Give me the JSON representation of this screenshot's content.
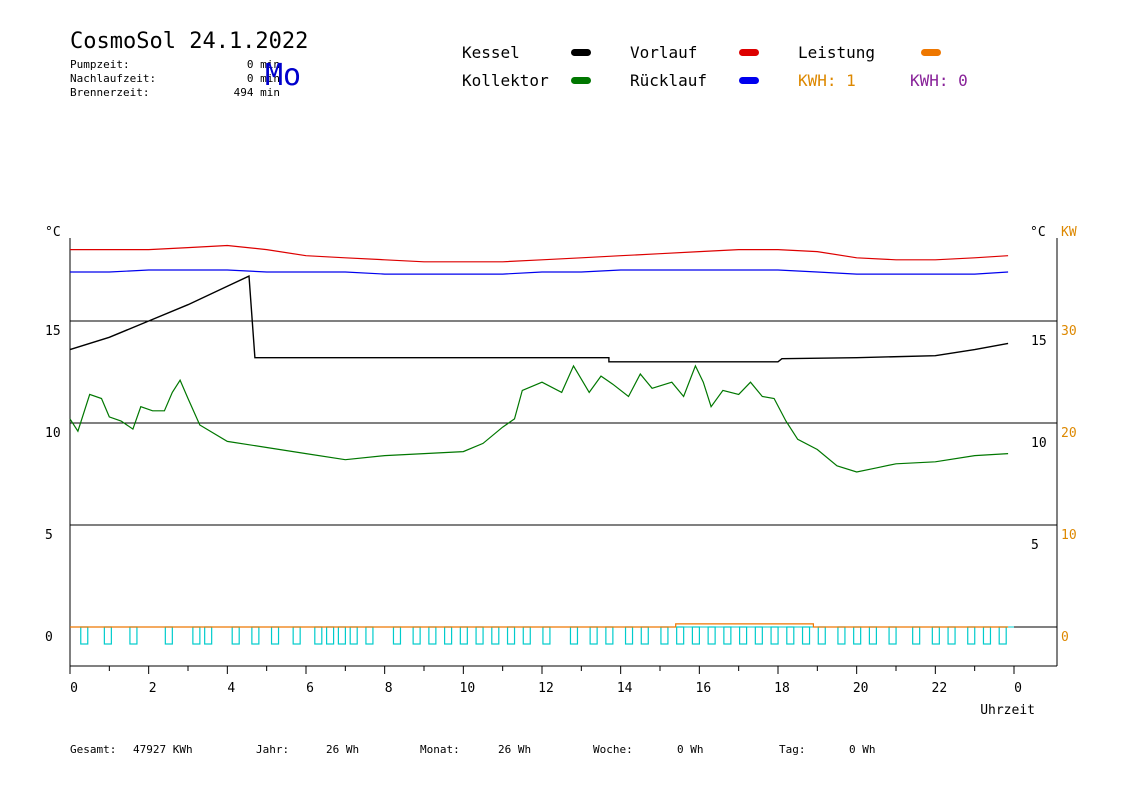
{
  "header": {
    "title": "CosmoSol 24.1.2022",
    "day": "Mo",
    "pump_label": "Pumpzeit:",
    "pump_value": "0 min",
    "nachlauf_label": "Nachlaufzeit:",
    "nachlauf_value": "0 min",
    "brenner_label": "Brennerzeit:",
    "brenner_value": "494 min"
  },
  "legend": {
    "kessel": "Kessel",
    "kollektor": "Kollektor",
    "vorlauf": "Vorlauf",
    "ruecklauf": "Rücklauf",
    "leistung": "Leistung",
    "kwh1": "KWH: 1",
    "kwh2": "KWH: 0"
  },
  "footer": {
    "gesamt_label": "Gesamt:",
    "gesamt_value": "47927 KWh",
    "jahr_label": "Jahr:",
    "jahr_value": "26 Wh",
    "monat_label": "Monat:",
    "monat_value": "26 Wh",
    "woche_label": "Woche:",
    "woche_value": "0 Wh",
    "tag_label": "Tag:",
    "tag_value": "0 Wh"
  },
  "colors": {
    "kessel": "#000000",
    "kollektor": "#007700",
    "vorlauf": "#dd0000",
    "ruecklauf": "#0000ee",
    "leistung": "#ee7700",
    "kwh1": "#dd8800",
    "kwh2": "#882299",
    "pump": "#00cccc"
  },
  "chart_data": {
    "type": "line",
    "xlabel": "Uhrzeit",
    "x_ticks": [
      "0",
      "2",
      "4",
      "6",
      "8",
      "10",
      "12",
      "14",
      "16",
      "18",
      "20",
      "22",
      "0"
    ],
    "left_axis": {
      "unit": "°C",
      "ticks": [
        "15",
        "10",
        "5",
        "0"
      ]
    },
    "right_axis_inner": {
      "unit": "°C",
      "ticks": [
        "15",
        "10",
        "5"
      ]
    },
    "right_axis_outer": {
      "unit": "KW",
      "ticks": [
        "30",
        "20",
        "10",
        "0"
      ]
    },
    "series": [
      {
        "name": "Kessel",
        "points": [
          [
            0,
            13.6
          ],
          [
            1,
            14.2
          ],
          [
            2,
            15
          ],
          [
            3,
            15.8
          ],
          [
            4,
            16.7
          ],
          [
            4.55,
            17.2
          ],
          [
            4.7,
            13.2
          ],
          [
            6,
            13.2
          ],
          [
            8,
            13.2
          ],
          [
            10,
            13.2
          ],
          [
            12,
            13.2
          ],
          [
            13.7,
            13.2
          ],
          [
            13.7,
            13.0
          ],
          [
            16,
            13.0
          ],
          [
            18,
            13.0
          ],
          [
            18.1,
            13.15
          ],
          [
            20,
            13.2
          ],
          [
            22,
            13.3
          ],
          [
            23,
            13.6
          ],
          [
            23.85,
            13.9
          ]
        ]
      },
      {
        "name": "Kollektor",
        "points": [
          [
            0,
            10.2
          ],
          [
            0.2,
            9.6
          ],
          [
            0.5,
            11.4
          ],
          [
            0.8,
            11.2
          ],
          [
            1,
            10.3
          ],
          [
            1.3,
            10.1
          ],
          [
            1.6,
            9.7
          ],
          [
            1.8,
            10.8
          ],
          [
            2.1,
            10.6
          ],
          [
            2.4,
            10.6
          ],
          [
            2.6,
            11.5
          ],
          [
            2.8,
            12.1
          ],
          [
            3,
            11.2
          ],
          [
            3.3,
            9.9
          ],
          [
            4,
            9.1
          ],
          [
            5,
            8.8
          ],
          [
            6,
            8.5
          ],
          [
            7,
            8.2
          ],
          [
            8,
            8.4
          ],
          [
            9,
            8.5
          ],
          [
            10,
            8.6
          ],
          [
            10.5,
            9.0
          ],
          [
            11,
            9.8
          ],
          [
            11.3,
            10.2
          ],
          [
            11.5,
            11.6
          ],
          [
            12,
            12.0
          ],
          [
            12.5,
            11.5
          ],
          [
            12.8,
            12.8
          ],
          [
            13.2,
            11.5
          ],
          [
            13.5,
            12.3
          ],
          [
            13.8,
            11.9
          ],
          [
            14.2,
            11.3
          ],
          [
            14.5,
            12.4
          ],
          [
            14.8,
            11.7
          ],
          [
            15.3,
            12.0
          ],
          [
            15.6,
            11.3
          ],
          [
            15.9,
            12.8
          ],
          [
            16.1,
            12.0
          ],
          [
            16.3,
            10.8
          ],
          [
            16.6,
            11.6
          ],
          [
            17,
            11.4
          ],
          [
            17.3,
            12.0
          ],
          [
            17.6,
            11.3
          ],
          [
            17.9,
            11.2
          ],
          [
            18.2,
            10.1
          ],
          [
            18.5,
            9.2
          ],
          [
            19,
            8.7
          ],
          [
            19.5,
            7.9
          ],
          [
            20,
            7.6
          ],
          [
            20.5,
            7.8
          ],
          [
            21,
            8.0
          ],
          [
            22,
            8.1
          ],
          [
            23,
            8.4
          ],
          [
            23.85,
            8.5
          ]
        ]
      },
      {
        "name": "Vorlauf",
        "points": [
          [
            0,
            18.5
          ],
          [
            1,
            18.5
          ],
          [
            2,
            18.5
          ],
          [
            3,
            18.6
          ],
          [
            4,
            18.7
          ],
          [
            5,
            18.5
          ],
          [
            6,
            18.2
          ],
          [
            7,
            18.1
          ],
          [
            8,
            18.0
          ],
          [
            9,
            17.9
          ],
          [
            10,
            17.9
          ],
          [
            11,
            17.9
          ],
          [
            12,
            18.0
          ],
          [
            13,
            18.1
          ],
          [
            14,
            18.2
          ],
          [
            15,
            18.3
          ],
          [
            16,
            18.4
          ],
          [
            17,
            18.5
          ],
          [
            18,
            18.5
          ],
          [
            19,
            18.4
          ],
          [
            20,
            18.1
          ],
          [
            21,
            18.0
          ],
          [
            22,
            18.0
          ],
          [
            23,
            18.1
          ],
          [
            23.85,
            18.2
          ]
        ]
      },
      {
        "name": "Rücklauf",
        "points": [
          [
            0,
            17.4
          ],
          [
            1,
            17.4
          ],
          [
            2,
            17.5
          ],
          [
            3,
            17.5
          ],
          [
            4,
            17.5
          ],
          [
            5,
            17.4
          ],
          [
            6,
            17.4
          ],
          [
            7,
            17.4
          ],
          [
            8,
            17.3
          ],
          [
            9,
            17.3
          ],
          [
            10,
            17.3
          ],
          [
            11,
            17.3
          ],
          [
            12,
            17.4
          ],
          [
            13,
            17.4
          ],
          [
            14,
            17.5
          ],
          [
            15,
            17.5
          ],
          [
            16,
            17.5
          ],
          [
            17,
            17.5
          ],
          [
            18,
            17.5
          ],
          [
            19,
            17.4
          ],
          [
            20,
            17.3
          ],
          [
            21,
            17.3
          ],
          [
            22,
            17.3
          ],
          [
            23,
            17.3
          ],
          [
            23.85,
            17.4
          ]
        ]
      },
      {
        "name": "Leistung",
        "points": [
          [
            0,
            0
          ],
          [
            15.4,
            0
          ],
          [
            15.4,
            0.15
          ],
          [
            18.9,
            0.15
          ],
          [
            18.9,
            0
          ],
          [
            23.85,
            0
          ]
        ]
      }
    ],
    "ylim_left": [
      -1.5,
      19.5
    ],
    "xlim": [
      0,
      24
    ]
  }
}
